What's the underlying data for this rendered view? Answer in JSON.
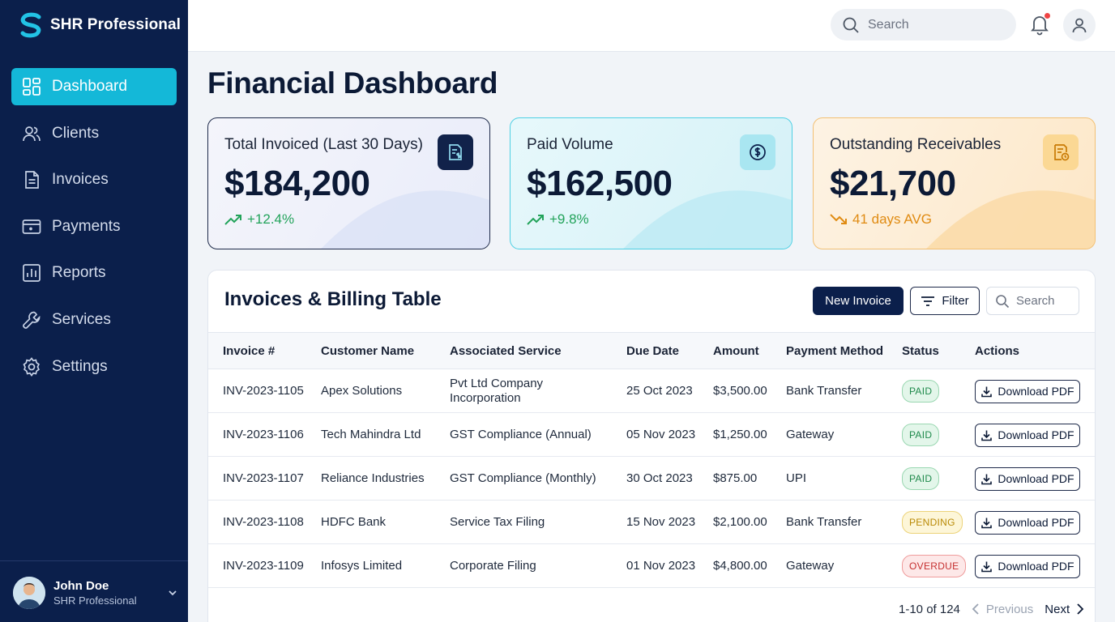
{
  "app": {
    "brand": "SHR Professional"
  },
  "sidebar": {
    "items": [
      {
        "label": "Dashboard",
        "icon": "dashboard-icon",
        "active": true
      },
      {
        "label": "Clients",
        "icon": "users-icon"
      },
      {
        "label": "Invoices",
        "icon": "document-icon"
      },
      {
        "label": "Payments",
        "icon": "card-icon"
      },
      {
        "label": "Reports",
        "icon": "chart-icon"
      },
      {
        "label": "Services",
        "icon": "wrench-icon"
      },
      {
        "label": "Settings",
        "icon": "gear-icon"
      }
    ],
    "user": {
      "name": "John Doe",
      "role": "SHR Professional"
    }
  },
  "topbar": {
    "search_placeholder": "Search"
  },
  "page": {
    "title": "Financial Dashboard"
  },
  "cards": [
    {
      "label": "Total Invoiced (Last 30 Days)",
      "value": "$184,200",
      "trend": "+12.4%",
      "trend_direction": "up",
      "icon": "invoice-dollar-icon"
    },
    {
      "label": "Paid Volume",
      "value": "$162,500",
      "trend": "+9.8%",
      "trend_direction": "up",
      "icon": "dollar-circle-icon"
    },
    {
      "label": "Outstanding Receivables",
      "value": "$21,700",
      "trend": "41 days AVG",
      "trend_direction": "down",
      "icon": "receipt-clock-icon"
    }
  ],
  "table": {
    "title": "Invoices & Billing Table",
    "new_button": "New Invoice",
    "filter_button": "Filter",
    "search_placeholder": "Search",
    "columns": [
      "Invoice #",
      "Customer Name",
      "Associated Service",
      "Due Date",
      "Amount",
      "Payment Method",
      "Status",
      "Actions"
    ],
    "rows": [
      {
        "invoice": "INV-2023-1105",
        "customer": "Apex Solutions",
        "service": "Pvt Ltd Company Incorporation",
        "due": "25 Oct 2023",
        "amount": "$3,500.00",
        "method": "Bank Transfer",
        "status": "PAID",
        "action": "Download PDF"
      },
      {
        "invoice": "INV-2023-1106",
        "customer": "Tech Mahindra Ltd",
        "service": "GST Compliance (Annual)",
        "due": "05 Nov 2023",
        "amount": "$1,250.00",
        "method": "Gateway",
        "status": "PAID",
        "action": "Download PDF"
      },
      {
        "invoice": "INV-2023-1107",
        "customer": "Reliance Industries",
        "service": "GST Compliance (Monthly)",
        "due": "30 Oct 2023",
        "amount": "$875.00",
        "method": "UPI",
        "status": "PAID",
        "action": "Download PDF"
      },
      {
        "invoice": "INV-2023-1108",
        "customer": "HDFC Bank",
        "service": "Service Tax Filing",
        "due": "15 Nov 2023",
        "amount": "$2,100.00",
        "method": "Bank Transfer",
        "status": "PENDING",
        "action": "Download PDF"
      },
      {
        "invoice": "INV-2023-1109",
        "customer": "Infosys Limited",
        "service": "Corporate Filing",
        "due": "01 Nov 2023",
        "amount": "$4,800.00",
        "method": "Gateway",
        "status": "OVERDUE",
        "action": "Download PDF"
      }
    ],
    "pagination": {
      "range": "1-10 of 124",
      "prev": "Previous",
      "next": "Next"
    }
  },
  "colors": {
    "sidebar_bg": "#0b1f4b",
    "accent": "#14b8d8",
    "positive": "#22a35a",
    "warning": "#e08b12",
    "paid": "#1f8a4c",
    "pending": "#b98a06",
    "overdue": "#c53030"
  }
}
